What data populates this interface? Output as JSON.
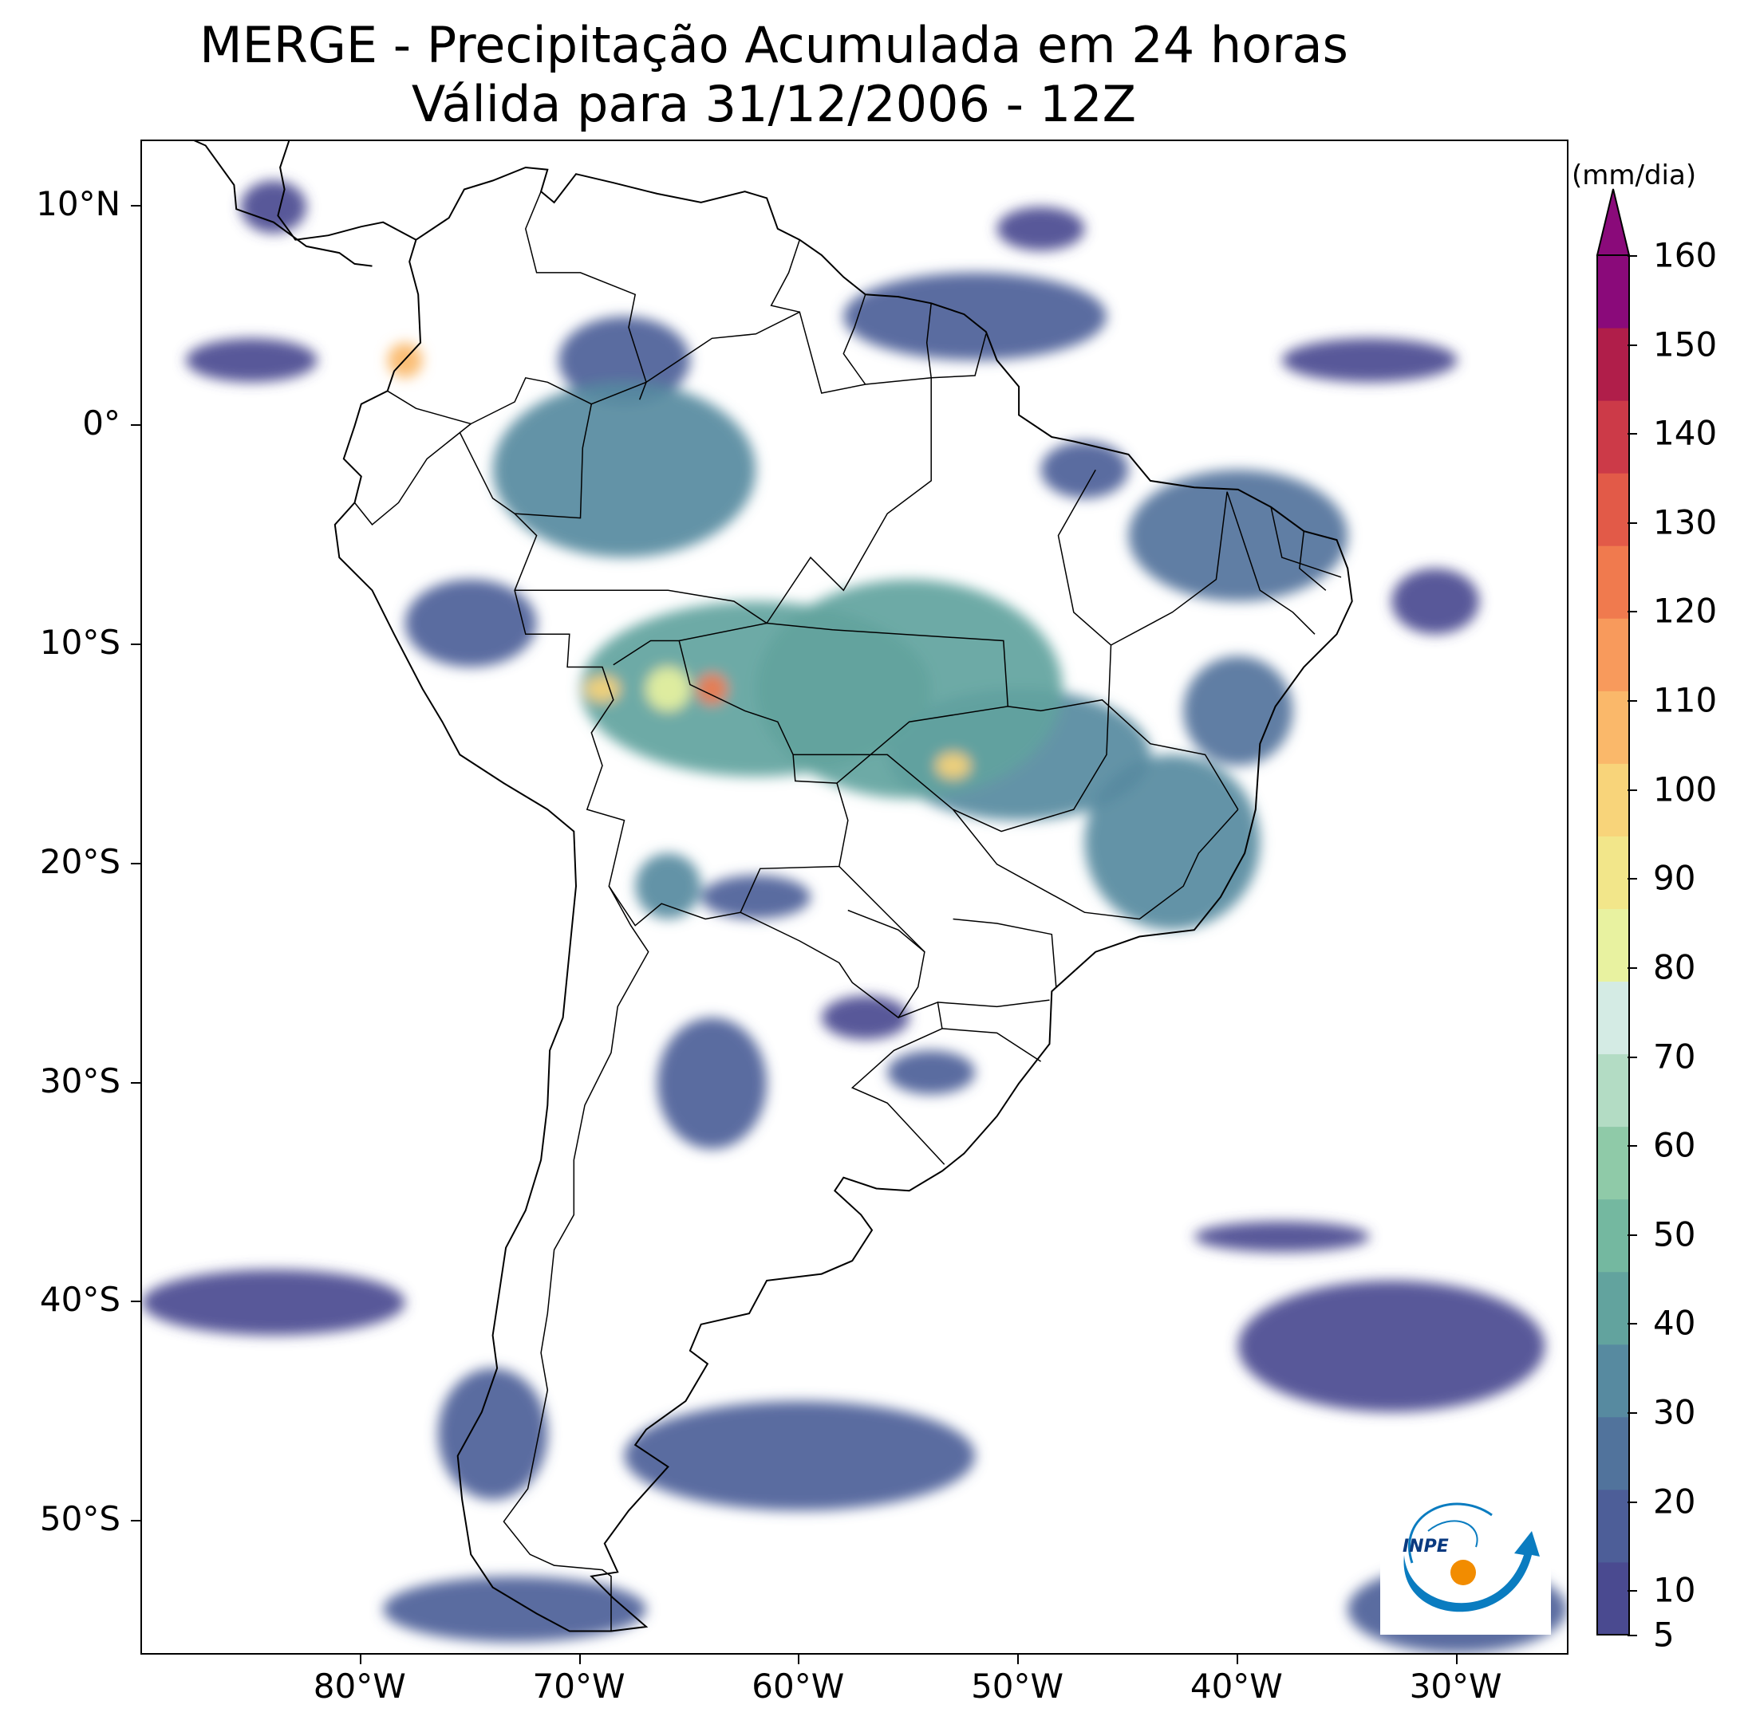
{
  "title": {
    "line1": "MERGE - Precipitação Acumulada em 24 horas",
    "line2": "Válida para 31/12/2006 - 12Z"
  },
  "map": {
    "type": "precipitation-map",
    "region": "South America",
    "lon_range": [
      -90,
      -25
    ],
    "lat_range": [
      -56,
      13
    ],
    "lat_ticks": [
      {
        "value": 10,
        "label": "10°N"
      },
      {
        "value": 0,
        "label": "0°"
      },
      {
        "value": -10,
        "label": "10°S"
      },
      {
        "value": -20,
        "label": "20°S"
      },
      {
        "value": -30,
        "label": "30°S"
      },
      {
        "value": -40,
        "label": "40°S"
      },
      {
        "value": -50,
        "label": "50°S"
      }
    ],
    "lon_ticks": [
      {
        "value": -80,
        "label": "80°W"
      },
      {
        "value": -70,
        "label": "70°W"
      },
      {
        "value": -60,
        "label": "60°W"
      },
      {
        "value": -50,
        "label": "50°W"
      },
      {
        "value": -40,
        "label": "40°W"
      },
      {
        "value": -30,
        "label": "30°W"
      }
    ]
  },
  "colorbar": {
    "unit": "(mm/dia)",
    "min": 5,
    "max": 160,
    "extend": "max",
    "ticks": [
      5,
      10,
      20,
      30,
      40,
      50,
      60,
      70,
      80,
      90,
      100,
      110,
      120,
      130,
      140,
      150,
      160
    ],
    "tick_labels": [
      "5",
      "10",
      "20",
      "30",
      "40",
      "50",
      "60",
      "70",
      "80",
      "90",
      "100",
      "110",
      "120",
      "130",
      "140",
      "150",
      "160"
    ],
    "colors": [
      "#4a4a90",
      "#4d5e98",
      "#51739c",
      "#578aa0",
      "#62a39e",
      "#74b8a0",
      "#8fcaa8",
      "#b3dcc4",
      "#d4ebe4",
      "#e8f2a0",
      "#f2e68a",
      "#f8d47a",
      "#fab86a",
      "#f89a5c",
      "#f07a4e",
      "#e25a48",
      "#cc3a48",
      "#b01e4a",
      "#8a0a7a"
    ],
    "colors_meaning": "dark blue (low) through teal, light green, yellow, orange, red to purple (high)"
  },
  "logo": {
    "text": "INPE",
    "icon": "inpe-logo-icon"
  },
  "precip_regions": [
    {
      "lon": -68,
      "lat": -2,
      "intensity": 35,
      "rx": 6,
      "ry": 4
    },
    {
      "lon": -62,
      "lat": -12,
      "intensity": 40,
      "rx": 8,
      "ry": 4
    },
    {
      "lon": -55,
      "lat": -12,
      "intensity": 45,
      "rx": 7,
      "ry": 5
    },
    {
      "lon": -50,
      "lat": -15,
      "intensity": 35,
      "rx": 6,
      "ry": 3
    },
    {
      "lon": -43,
      "lat": -19,
      "intensity": 30,
      "rx": 4,
      "ry": 4
    },
    {
      "lon": -52,
      "lat": 5,
      "intensity": 20,
      "rx": 6,
      "ry": 2
    },
    {
      "lon": -40,
      "lat": -5,
      "intensity": 25,
      "rx": 5,
      "ry": 3
    },
    {
      "lon": -66,
      "lat": -12,
      "intensity": 80,
      "rx": 1,
      "ry": 1
    },
    {
      "lon": -64,
      "lat": -12,
      "intensity": 120,
      "rx": 0.7,
      "ry": 0.7
    },
    {
      "lon": -69,
      "lat": -12,
      "intensity": 100,
      "rx": 0.8,
      "ry": 0.6
    },
    {
      "lon": -53,
      "lat": -15.5,
      "intensity": 95,
      "rx": 0.8,
      "ry": 0.6
    },
    {
      "lon": -78,
      "lat": 3,
      "intensity": 110,
      "rx": 0.8,
      "ry": 0.8
    },
    {
      "lon": -64,
      "lat": -30,
      "intensity": 20,
      "rx": 2.5,
      "ry": 3
    },
    {
      "lon": -54,
      "lat": -29.5,
      "intensity": 20,
      "rx": 2,
      "ry": 1
    },
    {
      "lon": -60,
      "lat": -47,
      "intensity": 15,
      "rx": 8,
      "ry": 2.5
    },
    {
      "lon": -74,
      "lat": -46,
      "intensity": 20,
      "rx": 2.5,
      "ry": 3
    },
    {
      "lon": -73,
      "lat": -54,
      "intensity": 15,
      "rx": 6,
      "ry": 1.5
    },
    {
      "lon": -33,
      "lat": -42,
      "intensity": 12,
      "rx": 7,
      "ry": 3
    },
    {
      "lon": -30,
      "lat": -54,
      "intensity": 15,
      "rx": 5,
      "ry": 2
    },
    {
      "lon": -34,
      "lat": 3,
      "intensity": 12,
      "rx": 4,
      "ry": 1
    },
    {
      "lon": -85,
      "lat": 3,
      "intensity": 10,
      "rx": 3,
      "ry": 1
    },
    {
      "lon": -84,
      "lat": 10,
      "intensity": 12,
      "rx": 1.5,
      "ry": 1.2
    },
    {
      "lon": -68,
      "lat": 3,
      "intensity": 15,
      "rx": 3,
      "ry": 2
    },
    {
      "lon": -31,
      "lat": -8,
      "intensity": 12,
      "rx": 2,
      "ry": 1.5
    },
    {
      "lon": -84,
      "lat": -40,
      "intensity": 10,
      "rx": 6,
      "ry": 1.5
    },
    {
      "lon": -38,
      "lat": -37,
      "intensity": 10,
      "rx": 4,
      "ry": 0.7
    },
    {
      "lon": -40,
      "lat": -13,
      "intensity": 25,
      "rx": 2.5,
      "ry": 2.5
    },
    {
      "lon": -66,
      "lat": -21,
      "intensity": 30,
      "rx": 1.5,
      "ry": 1.5
    },
    {
      "lon": -62,
      "lat": -21.5,
      "intensity": 15,
      "rx": 2.5,
      "ry": 1
    },
    {
      "lon": -47,
      "lat": -2,
      "intensity": 18,
      "rx": 2,
      "ry": 1.3
    },
    {
      "lon": -75,
      "lat": -9,
      "intensity": 20,
      "rx": 3,
      "ry": 2
    },
    {
      "lon": -49,
      "lat": 9,
      "intensity": 12,
      "rx": 2,
      "ry": 1
    },
    {
      "lon": -57,
      "lat": -27,
      "intensity": 12,
      "rx": 2,
      "ry": 1
    }
  ]
}
